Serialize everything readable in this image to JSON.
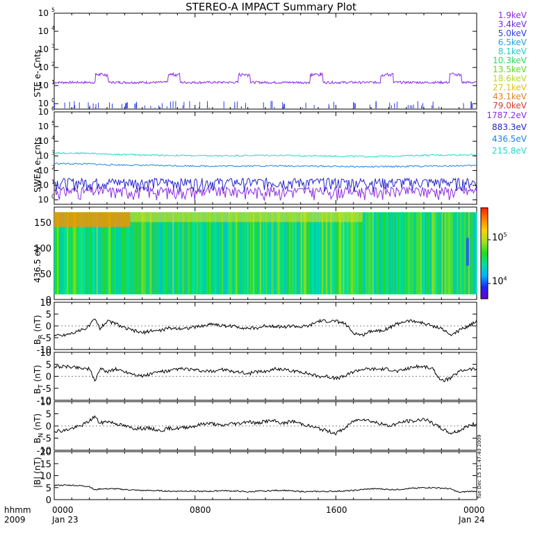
{
  "title": "STEREO-A IMPACT Summary Plot",
  "footer": {
    "time_label": "hhmm",
    "year_label": "2009",
    "start_time": "0000",
    "start_date": "Jan 23",
    "mid_time_1": "0800",
    "mid_time_2": "1600",
    "end_time": "0000",
    "end_date": "Jan 24"
  },
  "stamp": "Tue Dec 15 11:47:40 2009",
  "colors": {
    "ste": [
      "#8b2be2",
      "#6a2bd8",
      "#2b3be0",
      "#1fa0e0",
      "#22c8c8",
      "#2adb5a",
      "#5adb22",
      "#b5d82a",
      "#e0c020",
      "#e08020",
      "#d23b2b"
    ],
    "swea": [
      "#8b2be2",
      "#2222cc",
      "#2080e0",
      "#22d8c8"
    ],
    "spectrogram_scale": [
      "#6a00c8",
      "#2020ff",
      "#00b0ff",
      "#00e0a0",
      "#20dc20",
      "#a0e020",
      "#ffd000",
      "#ff8000",
      "#ff2000"
    ]
  },
  "chart_data": [
    {
      "type": "line",
      "panel": "ste",
      "ylabel": "STE e- Cnts",
      "yscale": "log",
      "ylim": [
        0.5,
        100000
      ],
      "yticks": [
        "10^0",
        "10^1",
        "10^2",
        "10^3",
        "10^4",
        "10^5"
      ],
      "legend_placement": "right",
      "series": [
        {
          "name": "1.9keV",
          "base": 15,
          "bursts_at_hours": [
            2.7,
            6.8,
            10.8,
            14.9,
            18.9,
            22.8
          ],
          "burst_peak": 45
        },
        {
          "name": "3.4keV"
        },
        {
          "name": "5.0keV",
          "base": 0.6,
          "spikes": true
        },
        {
          "name": "6.5keV"
        },
        {
          "name": "8.1keV"
        },
        {
          "name": "10.3keV"
        },
        {
          "name": "13.5keV"
        },
        {
          "name": "18.6keV"
        },
        {
          "name": "27.1keV"
        },
        {
          "name": "43.1keV"
        },
        {
          "name": "79.0keV"
        }
      ]
    },
    {
      "type": "line",
      "panel": "swea",
      "ylabel": "SWEA e- cnts",
      "yscale": "log",
      "ylim": [
        0.5,
        1000000
      ],
      "yticks": [
        "10^0",
        "10^1",
        "10^2",
        "10^3",
        "10^4",
        "10^5",
        "10^6"
      ],
      "legend_placement": "right",
      "series": [
        {
          "name": "1787.2eV",
          "x": [
            0,
            24
          ],
          "y": [
            3,
            3
          ],
          "noise": true
        },
        {
          "name": "883.3eV",
          "x": [
            0,
            24
          ],
          "y": [
            12,
            12
          ],
          "noise": true
        },
        {
          "name": "436.5eV",
          "x": [
            0,
            2,
            3,
            6,
            9,
            12,
            15,
            18,
            21,
            24
          ],
          "y": [
            300,
            280,
            250,
            220,
            200,
            210,
            200,
            180,
            200,
            220
          ]
        },
        {
          "name": "215.8eV",
          "x": [
            0,
            2,
            3,
            6,
            9,
            12,
            15,
            18,
            21,
            24
          ],
          "y": [
            1600,
            1500,
            1300,
            1100,
            1000,
            1100,
            1000,
            900,
            1100,
            1200
          ]
        }
      ]
    },
    {
      "type": "heatmap",
      "panel": "pad",
      "ylabel": "436.5 eV",
      "ylim": [
        0,
        180
      ],
      "yticks": [
        0,
        50,
        100,
        150
      ],
      "colorbar_log": true,
      "colorbar_range": [
        5000,
        400000
      ],
      "colorbar_ticks": [
        "10^4",
        "10^5"
      ]
    },
    {
      "type": "line",
      "panel": "br",
      "ylabel": "BR (nT)",
      "ylabel_main": "B",
      "ylabel_sub": "R",
      "ylabel_unit": "(nT)",
      "ylim": [
        -10,
        10
      ],
      "yticks": [
        -10,
        -5,
        0,
        5,
        10
      ],
      "x": [
        0,
        0.5,
        1,
        1.5,
        2,
        2.3,
        2.6,
        3,
        3.5,
        4,
        4.5,
        5,
        5.5,
        6,
        6.5,
        7,
        7.5,
        8,
        8.5,
        9,
        9.5,
        10,
        10.5,
        11,
        11.5,
        12,
        12.5,
        13,
        13.5,
        14,
        14.5,
        15,
        15.5,
        16,
        16.5,
        17,
        17.5,
        18,
        18.5,
        19,
        19.5,
        20,
        20.5,
        21,
        21.5,
        22,
        22.5,
        23,
        23.5,
        24
      ],
      "y": [
        -4,
        -4,
        -3,
        -2,
        0,
        3,
        -1,
        2,
        1,
        -1,
        -2,
        -3,
        -2,
        -2,
        -1,
        -1,
        -1,
        -0.5,
        0,
        1,
        0,
        0,
        -0.5,
        -1,
        -1,
        0,
        0,
        -0.5,
        0,
        -0.5,
        0,
        2,
        2,
        2,
        1,
        -3,
        -4,
        -2,
        -2,
        -1,
        1,
        2,
        2,
        1,
        0,
        -1,
        -4,
        -2,
        0,
        2
      ]
    },
    {
      "type": "line",
      "panel": "bt",
      "ylabel": "BT (nT)",
      "ylabel_main": "B",
      "ylabel_sub": "T",
      "ylabel_unit": "(nT)",
      "ylim": [
        -10,
        10
      ],
      "yticks": [
        -10,
        -5,
        0,
        5,
        10
      ],
      "x": [
        0,
        0.5,
        1,
        1.5,
        2,
        2.3,
        2.6,
        3,
        3.5,
        4,
        4.5,
        5,
        5.5,
        6,
        6.5,
        7,
        7.5,
        8,
        8.5,
        9,
        9.5,
        10,
        10.5,
        11,
        11.5,
        12,
        12.5,
        13,
        13.5,
        14,
        14.5,
        15,
        15.5,
        16,
        16.5,
        17,
        17.5,
        18,
        18.5,
        19,
        19.5,
        20,
        20.5,
        21,
        21.5,
        22,
        22.5,
        23,
        23.5,
        24
      ],
      "y": [
        4,
        4,
        4,
        3.5,
        3,
        -2,
        3,
        2,
        3,
        2,
        1,
        0,
        1,
        2,
        2,
        3,
        3,
        2.5,
        2,
        2,
        3,
        2,
        2,
        1,
        2,
        2,
        3,
        3,
        2,
        2,
        1,
        0,
        0,
        -1,
        0,
        2,
        3,
        3,
        3,
        3,
        2,
        3,
        4,
        4,
        3,
        -2,
        -1,
        2,
        3,
        3
      ]
    },
    {
      "type": "line",
      "panel": "bn",
      "ylabel": "BN (nT)",
      "ylabel_main": "B",
      "ylabel_sub": "N",
      "ylabel_unit": "(nT)",
      "ylim": [
        -10,
        10
      ],
      "yticks": [
        -10,
        -5,
        0,
        5,
        10
      ],
      "x": [
        0,
        0.5,
        1,
        1.5,
        2,
        2.3,
        2.6,
        3,
        3.5,
        4,
        4.5,
        5,
        5.5,
        6,
        6.5,
        7,
        7.5,
        8,
        8.5,
        9,
        9.5,
        10,
        10.5,
        11,
        11.5,
        12,
        12.5,
        13,
        13.5,
        14,
        14.5,
        15,
        15.5,
        16,
        16.5,
        17,
        17.5,
        18,
        18.5,
        19,
        19.5,
        20,
        20.5,
        21,
        21.5,
        22,
        22.5,
        23,
        23.5,
        24
      ],
      "y": [
        -2,
        -2,
        -1,
        0,
        2,
        4,
        1,
        2,
        1,
        0,
        -1,
        -1,
        -1,
        -2,
        -1,
        -1,
        -0.5,
        0,
        1,
        1,
        0,
        1,
        1,
        2,
        1,
        2,
        2,
        1,
        2,
        1,
        0,
        -1,
        -2,
        -3,
        -1,
        2,
        3,
        2,
        1,
        0,
        1,
        2,
        2,
        3,
        1,
        -1,
        -3,
        -2,
        0,
        1
      ]
    },
    {
      "type": "line",
      "panel": "bmag",
      "ylabel": "|B| (nT)",
      "ylim": [
        0,
        20
      ],
      "yticks": [
        0,
        5,
        10,
        15,
        20
      ],
      "x": [
        0,
        0.5,
        1,
        1.5,
        2,
        2.3,
        2.6,
        3,
        3.5,
        4,
        4.5,
        5,
        5.5,
        6,
        6.5,
        7,
        7.5,
        8,
        8.5,
        9,
        9.5,
        10,
        10.5,
        11,
        11.5,
        12,
        12.5,
        13,
        13.5,
        14,
        14.5,
        15,
        15.5,
        16,
        16.5,
        17,
        17.5,
        18,
        18.5,
        19,
        19.5,
        20,
        20.5,
        21,
        21.5,
        22,
        22.5,
        23,
        23.5,
        24
      ],
      "y": [
        6,
        6,
        6,
        5.8,
        5.5,
        4,
        4.5,
        4.5,
        4.5,
        4.2,
        4,
        3.8,
        3.8,
        3.7,
        3.5,
        3.5,
        3.6,
        3.5,
        3.4,
        3.5,
        3.8,
        3.6,
        3.5,
        3.2,
        3.5,
        3.6,
        3.8,
        3.9,
        3.6,
        3.4,
        3.3,
        3.4,
        3.4,
        3.5,
        3.6,
        3.8,
        4.2,
        4.5,
        4.5,
        4.2,
        4.2,
        4.5,
        4.8,
        5,
        5,
        4.8,
        4.5,
        3,
        3.4,
        3.5
      ]
    }
  ]
}
